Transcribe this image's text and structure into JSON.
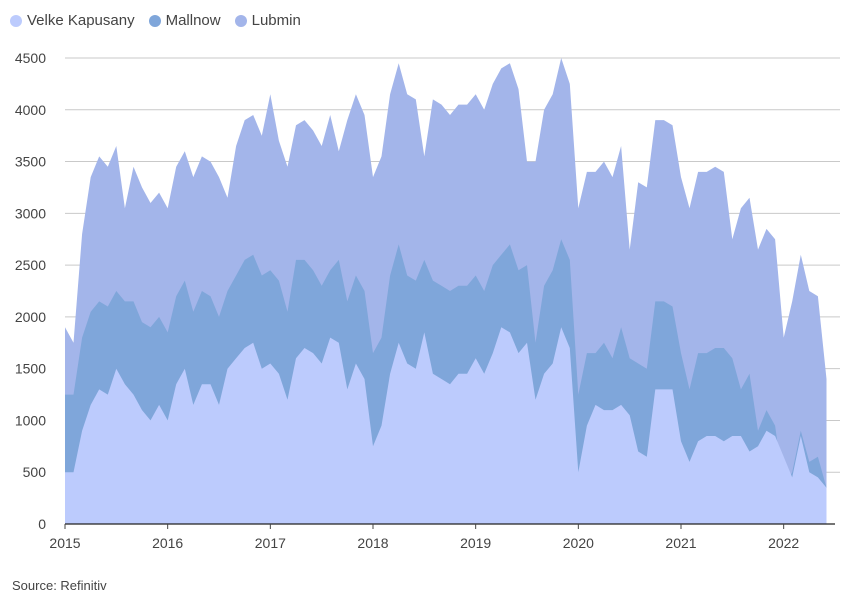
{
  "legend": [
    {
      "name": "Velke Kapusany",
      "color": "#bccbfd"
    },
    {
      "name": "Mallnow",
      "color": "#7fa6da"
    },
    {
      "name": "Lubmin",
      "color": "#a3b5ea"
    }
  ],
  "source": "Source: Refinitiv",
  "chart_data": {
    "type": "area",
    "stacked": false,
    "grid": true,
    "legend_position": "top-left",
    "ylim": [
      0,
      4500
    ],
    "yticks": [
      0,
      500,
      1000,
      1500,
      2000,
      2500,
      3000,
      3500,
      4000,
      4500
    ],
    "xlim": [
      2015.0,
      2022.5
    ],
    "xticks": [
      2015,
      2016,
      2017,
      2018,
      2019,
      2020,
      2021,
      2022
    ],
    "x": [
      2015.0,
      2015.083,
      2015.167,
      2015.25,
      2015.333,
      2015.417,
      2015.5,
      2015.583,
      2015.667,
      2015.75,
      2015.833,
      2015.917,
      2016.0,
      2016.083,
      2016.167,
      2016.25,
      2016.333,
      2016.417,
      2016.5,
      2016.583,
      2016.667,
      2016.75,
      2016.833,
      2016.917,
      2017.0,
      2017.083,
      2017.167,
      2017.25,
      2017.333,
      2017.417,
      2017.5,
      2017.583,
      2017.667,
      2017.75,
      2017.833,
      2017.917,
      2018.0,
      2018.083,
      2018.167,
      2018.25,
      2018.333,
      2018.417,
      2018.5,
      2018.583,
      2018.667,
      2018.75,
      2018.833,
      2018.917,
      2019.0,
      2019.083,
      2019.167,
      2019.25,
      2019.333,
      2019.417,
      2019.5,
      2019.583,
      2019.667,
      2019.75,
      2019.833,
      2019.917,
      2020.0,
      2020.083,
      2020.167,
      2020.25,
      2020.333,
      2020.417,
      2020.5,
      2020.583,
      2020.667,
      2020.75,
      2020.833,
      2020.917,
      2021.0,
      2021.083,
      2021.167,
      2021.25,
      2021.333,
      2021.417,
      2021.5,
      2021.583,
      2021.667,
      2021.75,
      2021.833,
      2021.917,
      2022.0,
      2022.083,
      2022.167,
      2022.25,
      2022.333,
      2022.417
    ],
    "series": [
      {
        "name": "Lubmin",
        "color": "#a3b5ea",
        "values": [
          1900,
          1750,
          2800,
          3350,
          3550,
          3450,
          3650,
          3050,
          3450,
          3250,
          3100,
          3200,
          3050,
          3450,
          3600,
          3350,
          3550,
          3500,
          3350,
          3150,
          3650,
          3900,
          3950,
          3750,
          4150,
          3700,
          3450,
          3850,
          3900,
          3800,
          3650,
          3950,
          3600,
          3900,
          4150,
          3950,
          3350,
          3550,
          4150,
          4450,
          4150,
          4100,
          3550,
          4100,
          4050,
          3950,
          4050,
          4050,
          4150,
          4000,
          4250,
          4400,
          4450,
          4200,
          3500,
          3500,
          4000,
          4150,
          4500,
          4250,
          3050,
          3400,
          3400,
          3500,
          3350,
          3650,
          2650,
          3300,
          3250,
          3900,
          3900,
          3850,
          3350,
          3050,
          3400,
          3400,
          3450,
          3400,
          2750,
          3050,
          3150,
          2650,
          2850,
          2750,
          1800,
          2150,
          2600,
          2250,
          2200,
          1400
        ]
      },
      {
        "name": "Mallnow",
        "color": "#7fa6da",
        "values": [
          1250,
          1250,
          1800,
          2050,
          2150,
          2100,
          2250,
          2150,
          2150,
          1950,
          1900,
          2000,
          1850,
          2200,
          2350,
          2050,
          2250,
          2200,
          2000,
          2250,
          2400,
          2550,
          2600,
          2400,
          2450,
          2350,
          2050,
          2550,
          2550,
          2450,
          2300,
          2450,
          2550,
          2150,
          2400,
          2250,
          1650,
          1800,
          2400,
          2700,
          2400,
          2350,
          2550,
          2350,
          2300,
          2250,
          2300,
          2300,
          2400,
          2250,
          2500,
          2600,
          2700,
          2450,
          2500,
          1750,
          2300,
          2450,
          2750,
          2550,
          1250,
          1650,
          1650,
          1750,
          1600,
          1900,
          1600,
          1550,
          1500,
          2150,
          2150,
          2100,
          1650,
          1300,
          1650,
          1650,
          1700,
          1700,
          1600,
          1300,
          1450,
          900,
          1100,
          950,
          350,
          500,
          900,
          600,
          650,
          350
        ]
      },
      {
        "name": "Velke Kapusany",
        "color": "#bccbfd",
        "values": [
          500,
          500,
          900,
          1150,
          1300,
          1250,
          1500,
          1350,
          1250,
          1100,
          1000,
          1150,
          1000,
          1350,
          1500,
          1150,
          1350,
          1350,
          1150,
          1500,
          1600,
          1700,
          1750,
          1500,
          1550,
          1450,
          1200,
          1600,
          1700,
          1650,
          1550,
          1800,
          1750,
          1300,
          1550,
          1400,
          750,
          950,
          1450,
          1750,
          1550,
          1500,
          1850,
          1450,
          1400,
          1350,
          1450,
          1450,
          1600,
          1450,
          1650,
          1900,
          1850,
          1650,
          1750,
          1200,
          1450,
          1550,
          1900,
          1700,
          500,
          950,
          1150,
          1100,
          1100,
          1150,
          1050,
          700,
          650,
          1300,
          1300,
          1300,
          800,
          600,
          800,
          850,
          850,
          800,
          850,
          850,
          700,
          750,
          900,
          850,
          650,
          450,
          850,
          500,
          450,
          350
        ]
      }
    ]
  }
}
